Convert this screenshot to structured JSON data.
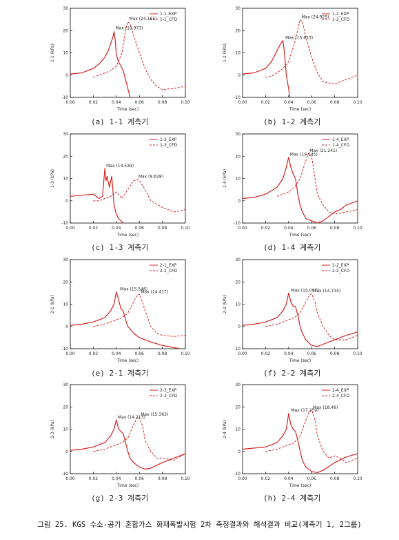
{
  "caption": "그림 25. KGS 수소-공기 혼합가스 화재폭발시험 2차 측정결과와 해석결과 비교(계측기 1, 2그룹)",
  "colors": {
    "series": "#d42020",
    "axis": "#000000"
  },
  "chart_data": [
    {
      "id": "1-1",
      "type": "line",
      "ylabel": "1-1 (kPa)",
      "xlabel": "Time (sec)",
      "xlim": [
        0,
        0.1
      ],
      "ylim": [
        -10,
        30
      ],
      "xticks": [
        "0.00",
        "0.02",
        "0.04",
        "0.06",
        "0.08",
        "0.10"
      ],
      "yticks": [
        "-10",
        "0",
        "10",
        "20",
        "30"
      ],
      "subcaption": "(a) 1-1 계측기",
      "legend_position": "top-right",
      "series": [
        {
          "name": "1-1_EXP",
          "style": "solid",
          "x": [
            0,
            0.01,
            0.02,
            0.025,
            0.03,
            0.033,
            0.035,
            0.037,
            0.038,
            0.039,
            0.04,
            0.042,
            0.044,
            0.046,
            0.048,
            0.05,
            0.052
          ],
          "y": [
            0.5,
            1,
            3,
            5,
            8,
            11,
            14,
            17,
            19.5,
            16,
            9,
            6,
            4,
            2,
            -2,
            -6,
            -10
          ]
        },
        {
          "name": "1-1_CFD",
          "style": "dashed",
          "x": [
            0.02,
            0.025,
            0.03,
            0.035,
            0.04,
            0.045,
            0.048,
            0.05,
            0.052,
            0.055,
            0.06,
            0.065,
            0.07,
            0.075,
            0.08,
            0.09,
            0.1
          ],
          "y": [
            -1,
            0,
            1,
            2,
            4,
            10,
            20,
            24,
            23,
            18,
            10,
            3,
            -2,
            -5,
            -6.5,
            -6,
            -5
          ]
        }
      ],
      "annotations": [
        {
          "text": "Max (24.165)",
          "x": 0.05,
          "y": 24.165
        },
        {
          "text": "Max (19.973)",
          "x": 0.038,
          "y": 19.973
        }
      ]
    },
    {
      "id": "1-2",
      "type": "line",
      "ylabel": "1-2 (kPa)",
      "xlabel": "Time (sec)",
      "xlim": [
        0,
        0.1
      ],
      "ylim": [
        -10,
        30
      ],
      "xticks": [
        "0.00",
        "0.02",
        "0.04",
        "0.06",
        "0.08",
        "0.10"
      ],
      "yticks": [
        "-10",
        "0",
        "10",
        "20",
        "30"
      ],
      "subcaption": "(b) 1-2 계측기",
      "legend_position": "top-right",
      "series": [
        {
          "name": "1-2_EXP",
          "style": "solid",
          "x": [
            0,
            0.01,
            0.02,
            0.025,
            0.03,
            0.033,
            0.035,
            0.036,
            0.037,
            0.038,
            0.04,
            0.041
          ],
          "y": [
            0.5,
            1,
            3,
            6,
            11,
            14,
            15.5,
            12,
            6,
            0,
            -6,
            -10
          ]
        },
        {
          "name": "1-2_CFD",
          "style": "dashed",
          "x": [
            0.02,
            0.025,
            0.03,
            0.035,
            0.04,
            0.045,
            0.05,
            0.052,
            0.055,
            0.06,
            0.065,
            0.07,
            0.08,
            0.09,
            0.1
          ],
          "y": [
            -1,
            -0.5,
            1,
            3,
            6,
            14,
            24.9,
            24,
            17,
            8,
            1,
            -3,
            -4,
            -2,
            0
          ]
        }
      ],
      "annotations": [
        {
          "text": "Max (24.925)",
          "x": 0.05,
          "y": 24.925
        },
        {
          "text": "Max (15.653)",
          "x": 0.036,
          "y": 15.653
        }
      ]
    },
    {
      "id": "1-3",
      "type": "line",
      "ylabel": "1-3 (kPa)",
      "xlabel": "Time (sec)",
      "xlim": [
        0,
        0.1
      ],
      "ylim": [
        -10,
        30
      ],
      "xticks": [
        "0.00",
        "0.02",
        "0.04",
        "0.06",
        "0.08",
        "0.10"
      ],
      "yticks": [
        "-10",
        "0",
        "10",
        "20",
        "30"
      ],
      "subcaption": "(c) 1-3 계측기",
      "legend_position": "top-right",
      "series": [
        {
          "name": "1-3_EXP",
          "style": "solid",
          "x": [
            0,
            0.01,
            0.02,
            0.025,
            0.028,
            0.03,
            0.031,
            0.032,
            0.034,
            0.036,
            0.037,
            0.038,
            0.04,
            0.042,
            0.044,
            0.046
          ],
          "y": [
            2,
            2.5,
            3,
            1,
            2,
            14.5,
            9,
            11,
            6,
            11,
            5,
            -2,
            -6,
            -8,
            -9,
            -10
          ]
        },
        {
          "name": "1-3_CFD",
          "style": "dashed",
          "x": [
            0.02,
            0.025,
            0.03,
            0.035,
            0.04,
            0.045,
            0.05,
            0.055,
            0.058,
            0.06,
            0.065,
            0.07,
            0.08,
            0.09,
            0.1
          ],
          "y": [
            0,
            0,
            1,
            2,
            4,
            1,
            5,
            9,
            9.6,
            9,
            5,
            0,
            -3,
            -5,
            -4
          ]
        }
      ],
      "annotations": [
        {
          "text": "Max (14.539)",
          "x": 0.03,
          "y": 14.539
        },
        {
          "text": "Max (9.628)",
          "x": 0.058,
          "y": 9.628
        }
      ]
    },
    {
      "id": "1-4",
      "type": "line",
      "ylabel": "1-4 (kPa)",
      "xlabel": "Time (sec)",
      "xlim": [
        0,
        0.1
      ],
      "ylim": [
        -10,
        30
      ],
      "xticks": [
        "0.00",
        "0.02",
        "0.04",
        "0.06",
        "0.08",
        "0.10"
      ],
      "yticks": [
        "-10",
        "0",
        "10",
        "20",
        "30"
      ],
      "subcaption": "(d) 1-4 계측기",
      "legend_position": "top-right",
      "series": [
        {
          "name": "1-4_EXP",
          "style": "solid",
          "x": [
            0,
            0.01,
            0.02,
            0.03,
            0.035,
            0.038,
            0.04,
            0.042,
            0.044,
            0.046,
            0.048,
            0.05,
            0.052,
            0.055,
            0.06,
            0.065,
            0.07,
            0.075,
            0.08,
            0.085,
            0.09,
            0.095,
            0.1
          ],
          "y": [
            1,
            1.5,
            3,
            6,
            10,
            15,
            19.5,
            15,
            12,
            10,
            3,
            -2,
            -5,
            -8,
            -9,
            -10,
            -9,
            -7,
            -5,
            -4,
            -2,
            -1,
            0
          ]
        },
        {
          "name": "1-4_CFD",
          "style": "dashed",
          "x": [
            0.03,
            0.035,
            0.04,
            0.045,
            0.05,
            0.055,
            0.057,
            0.06,
            0.063,
            0.065,
            0.07,
            0.075,
            0.08,
            0.09,
            0.1
          ],
          "y": [
            2,
            3,
            4,
            6,
            10,
            18,
            21.2,
            20,
            10,
            3,
            -2,
            -5,
            -6,
            -5,
            -4
          ]
        }
      ],
      "annotations": [
        {
          "text": "Max (19.545)",
          "x": 0.04,
          "y": 19.545
        },
        {
          "text": "Max (21.241)",
          "x": 0.057,
          "y": 21.241
        }
      ]
    },
    {
      "id": "2-1",
      "type": "line",
      "ylabel": "2-1 (kPa)",
      "xlabel": "Time (sec)",
      "xlim": [
        0,
        0.1
      ],
      "ylim": [
        -10,
        30
      ],
      "xticks": [
        "0.00",
        "0.02",
        "0.04",
        "0.06",
        "0.08",
        "0.10"
      ],
      "yticks": [
        "-10",
        "0",
        "10",
        "20",
        "30"
      ],
      "subcaption": "(e) 2-1 계측기",
      "legend_position": "top-right",
      "series": [
        {
          "name": "2-1_EXP",
          "style": "solid",
          "x": [
            0,
            0.01,
            0.02,
            0.03,
            0.035,
            0.038,
            0.04,
            0.042,
            0.044,
            0.046,
            0.048,
            0.05,
            0.055,
            0.06,
            0.065,
            0.07,
            0.08,
            0.09,
            0.095
          ],
          "y": [
            0.5,
            1,
            2,
            4,
            7,
            10,
            15.5,
            12,
            8,
            7,
            3,
            0,
            -3,
            -5,
            -6,
            -7,
            -8.5,
            -9.5,
            -10
          ]
        },
        {
          "name": "2-1_CFD",
          "style": "dashed",
          "x": [
            0.02,
            0.03,
            0.04,
            0.045,
            0.05,
            0.055,
            0.058,
            0.06,
            0.062,
            0.065,
            0.07,
            0.075,
            0.08,
            0.09,
            0.1
          ],
          "y": [
            0,
            1,
            3,
            4,
            6,
            11,
            14,
            14.4,
            12,
            7,
            0,
            -3,
            -4,
            -4.5,
            -4
          ]
        }
      ],
      "annotations": [
        {
          "text": "Max (15.546)",
          "x": 0.042,
          "y": 15.546
        },
        {
          "text": "Max (14.417)",
          "x": 0.06,
          "y": 14.417
        }
      ]
    },
    {
      "id": "2-2",
      "type": "line",
      "ylabel": "2-2 (kPa)",
      "xlabel": "Time (sec)",
      "xlim": [
        0,
        0.1
      ],
      "ylim": [
        -10,
        30
      ],
      "xticks": [
        "0.00",
        "0.02",
        "0.04",
        "0.06",
        "0.08",
        "0.10"
      ],
      "yticks": [
        "-10",
        "0",
        "10",
        "20",
        "30"
      ],
      "subcaption": "(f) 2-2 계측기",
      "legend_position": "top-right",
      "series": [
        {
          "name": "2-2_EXP",
          "style": "solid",
          "x": [
            0,
            0.01,
            0.02,
            0.03,
            0.035,
            0.038,
            0.04,
            0.042,
            0.044,
            0.046,
            0.048,
            0.05,
            0.052,
            0.055,
            0.06,
            0.065,
            0.07,
            0.08,
            0.09,
            0.1
          ],
          "y": [
            0.5,
            1,
            2,
            4,
            7,
            10,
            15,
            11,
            9,
            9,
            5,
            0,
            -3,
            -6,
            -8.5,
            -9,
            -8,
            -6,
            -4,
            -2.5
          ]
        },
        {
          "name": "2-2_CFD",
          "style": "dashed",
          "x": [
            0.02,
            0.03,
            0.04,
            0.045,
            0.05,
            0.055,
            0.058,
            0.06,
            0.063,
            0.065,
            0.07,
            0.075,
            0.08,
            0.09,
            0.1
          ],
          "y": [
            0,
            1,
            3,
            4,
            6,
            11,
            14,
            14.7,
            11,
            6,
            0,
            -4,
            -6,
            -6,
            -4
          ]
        }
      ],
      "annotations": [
        {
          "text": "Max (15.007)",
          "x": 0.041,
          "y": 15.007
        },
        {
          "text": "Max (14.734)",
          "x": 0.06,
          "y": 14.734
        }
      ]
    },
    {
      "id": "2-3",
      "type": "line",
      "ylabel": "2-3 (kPa)",
      "xlabel": "Time (sec)",
      "xlim": [
        0,
        0.1
      ],
      "ylim": [
        -10,
        30
      ],
      "xticks": [
        "0.00",
        "0.02",
        "0.04",
        "0.06",
        "0.08",
        "0.10"
      ],
      "yticks": [
        "-10",
        "0",
        "10",
        "20",
        "30"
      ],
      "subcaption": "(g) 2-3 계측기",
      "legend_position": "top-right",
      "series": [
        {
          "name": "2-3_EXP",
          "style": "solid",
          "x": [
            0,
            0.01,
            0.02,
            0.03,
            0.035,
            0.038,
            0.04,
            0.042,
            0.044,
            0.046,
            0.048,
            0.05,
            0.052,
            0.055,
            0.06,
            0.065,
            0.07,
            0.08,
            0.09,
            0.1
          ],
          "y": [
            0.5,
            1,
            2,
            4,
            7,
            10,
            14.2,
            10,
            9,
            8,
            4,
            0,
            -3,
            -5,
            -7,
            -8,
            -7.5,
            -5,
            -3,
            -1
          ]
        },
        {
          "name": "2-3_CFD",
          "style": "dashed",
          "x": [
            0.02,
            0.03,
            0.04,
            0.045,
            0.05,
            0.055,
            0.058,
            0.06,
            0.063,
            0.065,
            0.07,
            0.075,
            0.08,
            0.09,
            0.1
          ],
          "y": [
            0,
            1,
            3,
            4,
            6,
            12,
            15,
            15.4,
            11,
            5,
            0,
            -3,
            -3,
            -4,
            -1
          ]
        }
      ],
      "annotations": [
        {
          "text": "Max (14.213)",
          "x": 0.04,
          "y": 14.213
        },
        {
          "text": "Max (15.363)",
          "x": 0.06,
          "y": 15.363
        }
      ]
    },
    {
      "id": "2-4",
      "type": "line",
      "ylabel": "2-4 (kPa)",
      "xlabel": "Time (sec)",
      "xlim": [
        0,
        0.1
      ],
      "ylim": [
        -10,
        30
      ],
      "xticks": [
        "0.00",
        "0.02",
        "0.04",
        "0.06",
        "0.08",
        "0.10"
      ],
      "yticks": [
        "-10",
        "0",
        "10",
        "20",
        "30"
      ],
      "subcaption": "(h) 2-4 계측기",
      "legend_position": "top-right",
      "series": [
        {
          "name": "2-4_EXP",
          "style": "solid",
          "x": [
            0,
            0.01,
            0.02,
            0.03,
            0.035,
            0.038,
            0.04,
            0.042,
            0.044,
            0.046,
            0.048,
            0.05,
            0.052,
            0.055,
            0.06,
            0.065,
            0.07,
            0.08,
            0.09,
            0.1
          ],
          "y": [
            1,
            1.5,
            2,
            4,
            7,
            10,
            17,
            12,
            10,
            9,
            5,
            0,
            -4,
            -7,
            -9,
            -9.5,
            -8.5,
            -5,
            -2.5,
            -1
          ]
        },
        {
          "name": "2-4_CFD",
          "style": "dashed",
          "x": [
            0.02,
            0.03,
            0.04,
            0.045,
            0.05,
            0.055,
            0.058,
            0.06,
            0.063,
            0.065,
            0.07,
            0.075,
            0.08,
            0.085,
            0.09,
            0.1
          ],
          "y": [
            0,
            1,
            3,
            4,
            7,
            14,
            18,
            18.5,
            14,
            7,
            0,
            -3,
            -2,
            -3,
            -5,
            -3
          ]
        }
      ],
      "annotations": [
        {
          "text": "Max (17.259)",
          "x": 0.041,
          "y": 17.259
        },
        {
          "text": "Max (18.49)",
          "x": 0.06,
          "y": 18.49
        }
      ]
    }
  ]
}
